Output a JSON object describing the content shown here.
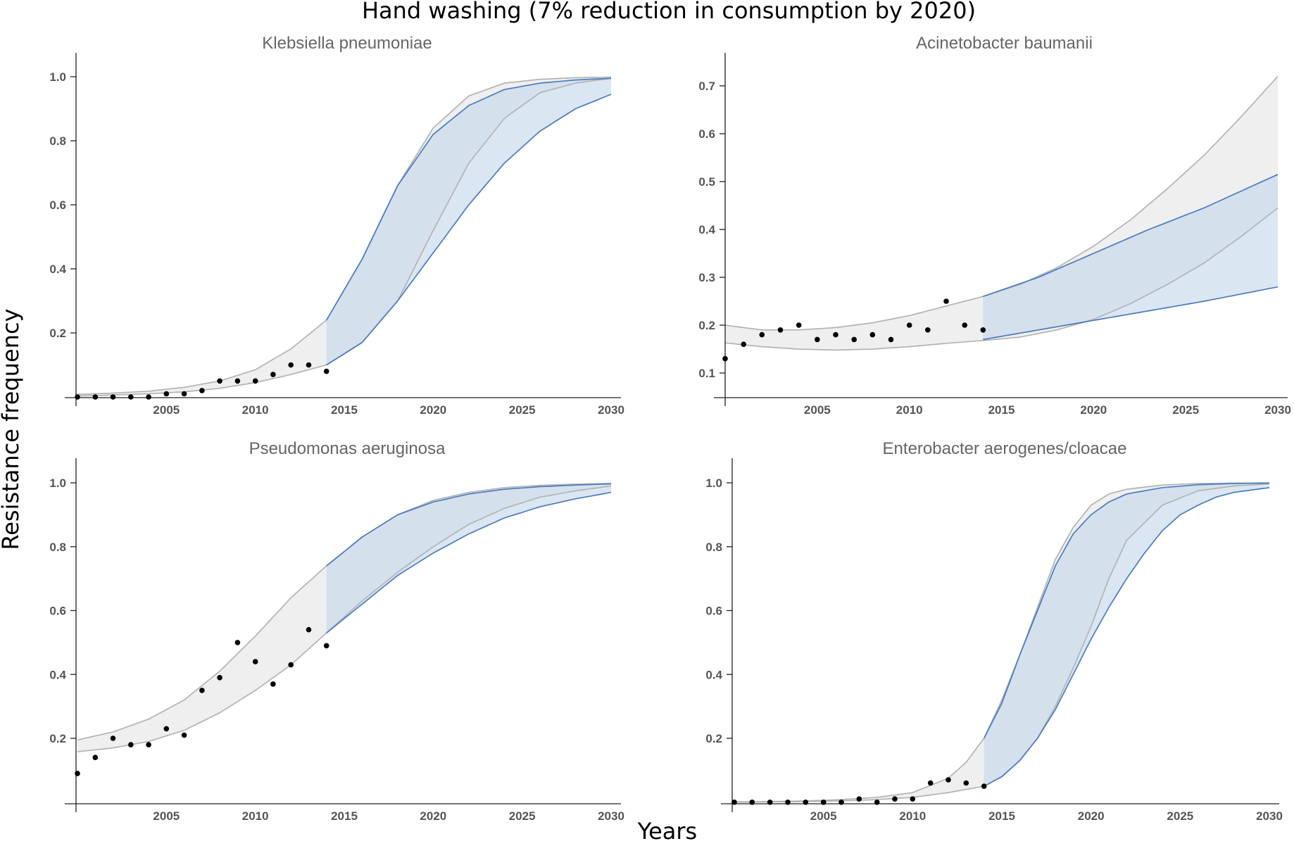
{
  "figure": {
    "title": "Hand washing (7% reduction in consumption by 2020)",
    "xlabel": "Years",
    "ylabel": "Resistance frequency"
  },
  "colors": {
    "band_gray": "#efefef",
    "band_blue": "#c5d6eb",
    "line_gray": "#b3b3b3",
    "line_blue": "#4a7bbf",
    "points": "#000000"
  },
  "chart_data": [
    {
      "type": "area",
      "title": "Klebsiella pneumoniae",
      "xlim": [
        2000,
        2030
      ],
      "ylim": [
        0,
        1.05
      ],
      "xticks": [
        2005,
        2010,
        2015,
        2020,
        2025,
        2030
      ],
      "yticks": [
        0.2,
        0.4,
        0.6,
        0.8,
        1.0
      ],
      "observed": {
        "x": [
          2000,
          2001,
          2002,
          2003,
          2004,
          2005,
          2006,
          2007,
          2008,
          2009,
          2010,
          2011,
          2012,
          2013,
          2014
        ],
        "y": [
          0.0,
          0.0,
          0.0,
          0.0,
          0.0,
          0.01,
          0.01,
          0.02,
          0.05,
          0.05,
          0.05,
          0.07,
          0.1,
          0.1,
          0.08
        ]
      },
      "gray_upper": {
        "x": [
          2000,
          2002,
          2004,
          2006,
          2008,
          2010,
          2012,
          2014,
          2016,
          2018,
          2020,
          2022,
          2024,
          2026,
          2028,
          2030
        ],
        "y": [
          0.008,
          0.012,
          0.018,
          0.03,
          0.05,
          0.085,
          0.15,
          0.24,
          0.43,
          0.66,
          0.84,
          0.94,
          0.98,
          0.992,
          0.997,
          0.999
        ]
      },
      "gray_lower": {
        "x": [
          2000,
          2002,
          2004,
          2006,
          2008,
          2010,
          2012,
          2014,
          2016,
          2018,
          2020,
          2022,
          2024,
          2026,
          2028,
          2030
        ],
        "y": [
          0.003,
          0.006,
          0.01,
          0.016,
          0.027,
          0.045,
          0.07,
          0.1,
          0.17,
          0.3,
          0.52,
          0.73,
          0.87,
          0.95,
          0.98,
          0.995
        ]
      },
      "blue_upper": {
        "x": [
          2014,
          2016,
          2018,
          2020,
          2022,
          2024,
          2026,
          2028,
          2030
        ],
        "y": [
          0.24,
          0.43,
          0.66,
          0.82,
          0.91,
          0.96,
          0.98,
          0.99,
          0.995
        ]
      },
      "blue_lower": {
        "x": [
          2014,
          2016,
          2018,
          2020,
          2022,
          2024,
          2026,
          2028,
          2030
        ],
        "y": [
          0.1,
          0.17,
          0.3,
          0.45,
          0.6,
          0.73,
          0.83,
          0.9,
          0.945
        ]
      }
    },
    {
      "type": "area",
      "title": "Acinetobacter baumanii",
      "xlim": [
        2000,
        2030
      ],
      "ylim": [
        0.05,
        0.75
      ],
      "xticks": [
        2005,
        2010,
        2015,
        2020,
        2025,
        2030
      ],
      "yticks": [
        0.1,
        0.2,
        0.3,
        0.4,
        0.5,
        0.6,
        0.7
      ],
      "observed": {
        "x": [
          2000,
          2001,
          2002,
          2003,
          2004,
          2005,
          2006,
          2007,
          2008,
          2009,
          2010,
          2011,
          2012,
          2013,
          2014
        ],
        "y": [
          0.13,
          0.16,
          0.18,
          0.19,
          0.2,
          0.17,
          0.18,
          0.17,
          0.18,
          0.17,
          0.2,
          0.19,
          0.25,
          0.2,
          0.19
        ]
      },
      "gray_upper": {
        "x": [
          2000,
          2002,
          2004,
          2006,
          2008,
          2010,
          2012,
          2014,
          2016,
          2018,
          2020,
          2022,
          2024,
          2026,
          2028,
          2030
        ],
        "y": [
          0.2,
          0.19,
          0.19,
          0.195,
          0.205,
          0.22,
          0.24,
          0.26,
          0.285,
          0.32,
          0.365,
          0.42,
          0.485,
          0.555,
          0.635,
          0.72
        ]
      },
      "gray_lower": {
        "x": [
          2000,
          2002,
          2004,
          2006,
          2008,
          2010,
          2012,
          2014,
          2016,
          2018,
          2020,
          2022,
          2024,
          2026,
          2028,
          2030
        ],
        "y": [
          0.163,
          0.155,
          0.15,
          0.148,
          0.15,
          0.155,
          0.162,
          0.168,
          0.175,
          0.19,
          0.212,
          0.245,
          0.285,
          0.33,
          0.385,
          0.445
        ]
      },
      "blue_upper": {
        "x": [
          2014,
          2017,
          2020,
          2023,
          2026,
          2030
        ],
        "y": [
          0.26,
          0.3,
          0.35,
          0.4,
          0.445,
          0.515
        ]
      },
      "blue_lower": {
        "x": [
          2014,
          2017,
          2020,
          2023,
          2026,
          2030
        ],
        "y": [
          0.17,
          0.19,
          0.21,
          0.23,
          0.25,
          0.28
        ]
      }
    },
    {
      "type": "area",
      "title": "Pseudomonas aeruginosa",
      "xlim": [
        2000,
        2030
      ],
      "ylim": [
        0,
        1.05
      ],
      "xticks": [
        2005,
        2010,
        2015,
        2020,
        2025,
        2030
      ],
      "yticks": [
        0.2,
        0.4,
        0.6,
        0.8,
        1.0
      ],
      "observed": {
        "x": [
          2000,
          2001,
          2002,
          2003,
          2004,
          2005,
          2006,
          2007,
          2008,
          2009,
          2010,
          2011,
          2012,
          2013,
          2014
        ],
        "y": [
          0.09,
          0.14,
          0.2,
          0.18,
          0.18,
          0.23,
          0.21,
          0.35,
          0.39,
          0.5,
          0.44,
          0.37,
          0.43,
          0.54,
          0.49
        ]
      },
      "gray_upper": {
        "x": [
          2000,
          2002,
          2004,
          2006,
          2008,
          2010,
          2012,
          2014,
          2016,
          2018,
          2020,
          2022,
          2024,
          2026,
          2028,
          2030
        ],
        "y": [
          0.195,
          0.22,
          0.26,
          0.32,
          0.41,
          0.52,
          0.64,
          0.74,
          0.83,
          0.9,
          0.945,
          0.97,
          0.985,
          0.992,
          0.996,
          0.998
        ]
      },
      "gray_lower": {
        "x": [
          2000,
          2002,
          2004,
          2006,
          2008,
          2010,
          2012,
          2014,
          2016,
          2018,
          2020,
          2022,
          2024,
          2026,
          2028,
          2030
        ],
        "y": [
          0.158,
          0.17,
          0.19,
          0.225,
          0.28,
          0.35,
          0.43,
          0.53,
          0.63,
          0.72,
          0.8,
          0.87,
          0.92,
          0.955,
          0.975,
          0.99
        ]
      },
      "blue_upper": {
        "x": [
          2014,
          2016,
          2018,
          2020,
          2022,
          2024,
          2026,
          2028,
          2030
        ],
        "y": [
          0.74,
          0.83,
          0.9,
          0.94,
          0.965,
          0.98,
          0.988,
          0.993,
          0.997
        ]
      },
      "blue_lower": {
        "x": [
          2014,
          2016,
          2018,
          2020,
          2022,
          2024,
          2026,
          2028,
          2030
        ],
        "y": [
          0.53,
          0.62,
          0.71,
          0.78,
          0.84,
          0.89,
          0.925,
          0.95,
          0.97
        ]
      }
    },
    {
      "type": "area",
      "title": "Enterobacter aerogenes/cloacae",
      "xlim": [
        2000,
        2030
      ],
      "ylim": [
        0,
        1.05
      ],
      "xticks": [
        2005,
        2010,
        2015,
        2020,
        2025,
        2030
      ],
      "yticks": [
        0.2,
        0.4,
        0.6,
        0.8,
        1.0
      ],
      "observed": {
        "x": [
          2000,
          2001,
          2002,
          2003,
          2004,
          2005,
          2006,
          2007,
          2008,
          2009,
          2010,
          2011,
          2012,
          2013,
          2014
        ],
        "y": [
          0.0,
          0.0,
          0.0,
          0.0,
          0.0,
          0.0,
          0.0,
          0.01,
          0.0,
          0.01,
          0.01,
          0.06,
          0.07,
          0.06,
          0.05
        ]
      },
      "gray_upper": {
        "x": [
          2000,
          2002,
          2004,
          2006,
          2008,
          2010,
          2012,
          2013,
          2014,
          2015,
          2016,
          2017,
          2018,
          2019,
          2020,
          2021,
          2022,
          2024,
          2026,
          2028,
          2030
        ],
        "y": [
          0.001,
          0.002,
          0.004,
          0.008,
          0.015,
          0.03,
          0.075,
          0.125,
          0.2,
          0.32,
          0.46,
          0.61,
          0.76,
          0.86,
          0.93,
          0.965,
          0.98,
          0.993,
          0.998,
          0.999,
          1.0
        ]
      },
      "gray_lower": {
        "x": [
          2000,
          2002,
          2004,
          2006,
          2008,
          2010,
          2012,
          2013,
          2014,
          2015,
          2016,
          2017,
          2018,
          2019,
          2020,
          2021,
          2022,
          2024,
          2026,
          2028,
          2030
        ],
        "y": [
          0.0,
          0.001,
          0.002,
          0.004,
          0.008,
          0.015,
          0.03,
          0.04,
          0.05,
          0.08,
          0.13,
          0.2,
          0.3,
          0.42,
          0.55,
          0.7,
          0.82,
          0.93,
          0.975,
          0.99,
          0.997
        ]
      },
      "blue_upper": {
        "x": [
          2014,
          2015,
          2016,
          2017,
          2018,
          2019,
          2020,
          2021,
          2022,
          2024,
          2026,
          2028,
          2030
        ],
        "y": [
          0.2,
          0.31,
          0.46,
          0.6,
          0.74,
          0.84,
          0.9,
          0.94,
          0.965,
          0.985,
          0.994,
          0.998,
          0.999
        ]
      },
      "blue_lower": {
        "x": [
          2014,
          2015,
          2016,
          2017,
          2018,
          2019,
          2020,
          2021,
          2022,
          2023,
          2024,
          2025,
          2026,
          2027,
          2028,
          2030
        ],
        "y": [
          0.05,
          0.08,
          0.13,
          0.2,
          0.29,
          0.4,
          0.51,
          0.61,
          0.7,
          0.78,
          0.85,
          0.9,
          0.93,
          0.955,
          0.97,
          0.985
        ]
      }
    }
  ]
}
